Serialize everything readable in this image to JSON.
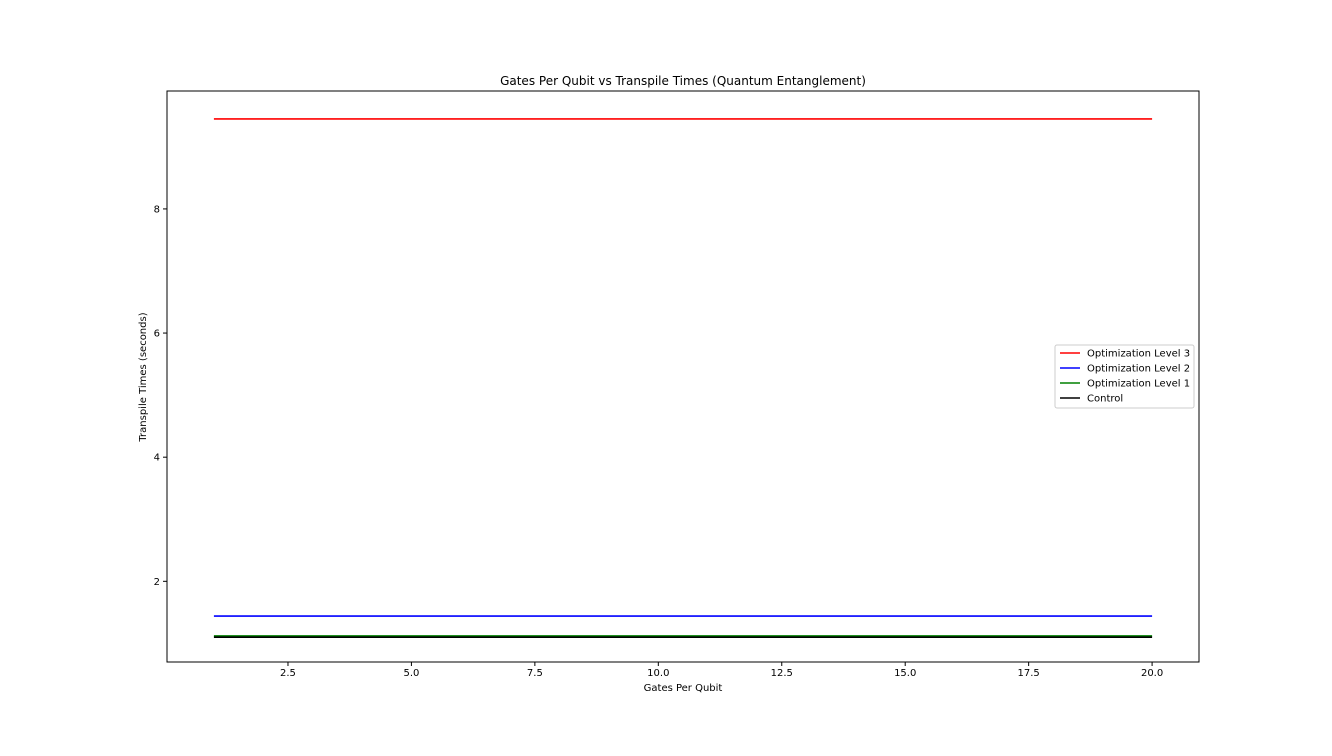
{
  "chart_data": {
    "type": "line",
    "title": "Gates Per Qubit vs Transpile Times (Quantum Entanglement)",
    "xlabel": "Gates Per Qubit",
    "ylabel": "Transpile Times (seconds)",
    "xlim": [
      0.05,
      20.95
    ],
    "ylim": [
      0.7,
      9.9
    ],
    "xticks": [
      2.5,
      5.0,
      7.5,
      10.0,
      12.5,
      15.0,
      17.5,
      20.0
    ],
    "xtick_labels": [
      "2.5",
      "5.0",
      "7.5",
      "10.0",
      "12.5",
      "15.0",
      "17.5",
      "20.0"
    ],
    "yticks": [
      2,
      4,
      6,
      8
    ],
    "ytick_labels": [
      "2",
      "4",
      "6",
      "8"
    ],
    "grid": false,
    "legend_position": "center-right",
    "series": [
      {
        "name": "Optimization Level 3",
        "color": "#ff0000",
        "x": [
          1,
          20
        ],
        "y": [
          9.45,
          9.45
        ]
      },
      {
        "name": "Optimization Level 2",
        "color": "#0000ff",
        "x": [
          1,
          20
        ],
        "y": [
          1.44,
          1.44
        ]
      },
      {
        "name": "Optimization Level 1",
        "color": "#008000",
        "x": [
          1,
          20
        ],
        "y": [
          1.12,
          1.12
        ]
      },
      {
        "name": "Control",
        "color": "#000000",
        "x": [
          1,
          20
        ],
        "y": [
          1.1,
          1.1
        ]
      }
    ]
  }
}
